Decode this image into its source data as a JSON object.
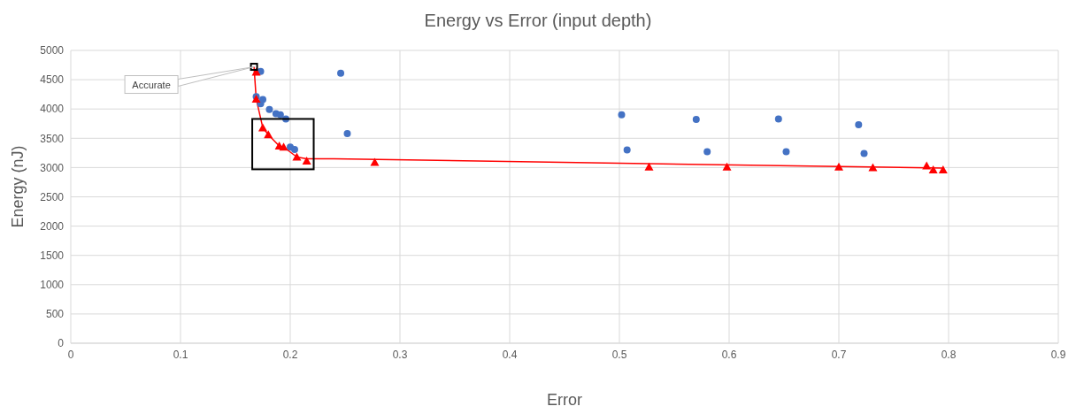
{
  "chart_data": {
    "type": "scatter",
    "title": "Energy vs Error (input depth)",
    "xlabel": "Error",
    "ylabel": "Energy (nJ)",
    "xlim": [
      0,
      0.9
    ],
    "xticks": [
      0,
      0.1,
      0.2,
      0.3,
      0.4,
      0.5,
      0.6,
      0.7,
      0.8,
      0.9
    ],
    "ylim": [
      0,
      5000
    ],
    "yticks": [
      0,
      500,
      1000,
      1500,
      2000,
      2500,
      3000,
      3500,
      4000,
      4500,
      5000
    ],
    "grid": true,
    "series": [
      {
        "marker": "circle",
        "color": "#4472c4",
        "x": [
          0.173,
          0.169,
          0.175,
          0.173,
          0.181,
          0.187,
          0.191,
          0.196,
          0.2,
          0.204,
          0.246,
          0.252,
          0.502,
          0.507,
          0.57,
          0.58,
          0.645,
          0.652,
          0.718,
          0.723
        ],
        "values": [
          4640,
          4210,
          4160,
          4090,
          3990,
          3920,
          3900,
          3830,
          3350,
          3310,
          4610,
          3580,
          3900,
          3300,
          3820,
          3270,
          3830,
          3270,
          3730,
          3240
        ]
      },
      {
        "type": "line",
        "marker": "none",
        "color": "#ff0000",
        "x": [
          0.167,
          0.169,
          0.175,
          0.18,
          0.19,
          0.194,
          0.206,
          0.215,
          0.24,
          0.795
        ],
        "values": [
          4720,
          4170,
          3680,
          3560,
          3370,
          3350,
          3180,
          3150,
          3150,
          2990
        ]
      },
      {
        "marker": "triangle",
        "color": "#ff0000",
        "x": [
          0.169,
          0.169,
          0.175,
          0.18,
          0.19,
          0.194,
          0.206,
          0.215,
          0.277,
          0.527,
          0.598,
          0.7,
          0.731,
          0.78,
          0.786,
          0.795
        ],
        "values": [
          4630,
          4170,
          3680,
          3560,
          3370,
          3350,
          3180,
          3110,
          3090,
          3010,
          3010,
          3010,
          3000,
          3030,
          2960,
          2960
        ]
      },
      {
        "marker": "square",
        "color": "#000000",
        "x": [
          0.167
        ],
        "values": [
          4720
        ]
      }
    ],
    "annotations": [
      {
        "text": "Accurate",
        "x": 0.167,
        "y": 4720
      }
    ]
  }
}
